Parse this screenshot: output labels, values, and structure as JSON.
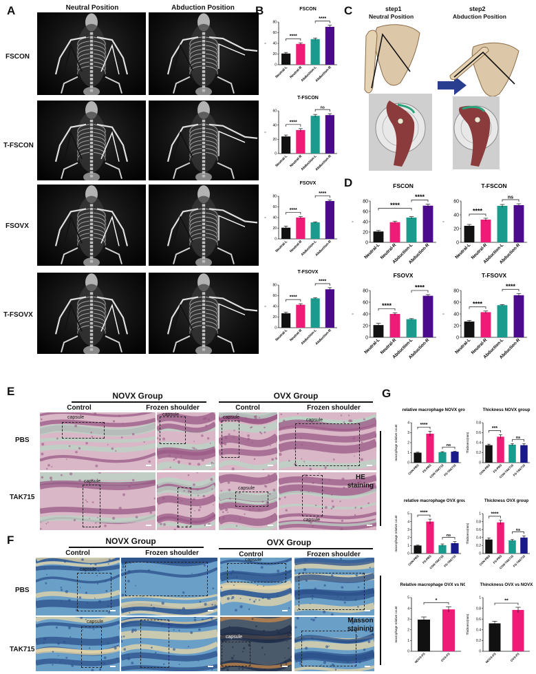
{
  "panels": {
    "A": "A",
    "B": "B",
    "C": "C",
    "D": "D",
    "E": "E",
    "F": "F",
    "G": "G"
  },
  "A": {
    "columns": [
      "Neutral Position",
      "Abduction Position"
    ],
    "rows": [
      "FSCON",
      "T-FSCON",
      "FSOVX",
      "T-FSOVX"
    ]
  },
  "C": {
    "step1": "step1",
    "step1_sub": "Neutral Position",
    "step2": "step2",
    "step2_sub": "Abduction Position"
  },
  "E": {
    "groups": [
      "NOVX Group",
      "OVX Group"
    ],
    "subs": [
      "Control",
      "Frozen shoulder",
      "Control",
      "Frozen shoulder"
    ],
    "rows": [
      "PBS",
      "TAK715"
    ],
    "capsule": "capsule",
    "stain_l1": "HE",
    "stain_l2": "staining"
  },
  "F": {
    "groups": [
      "NOVX Group",
      "OVX Group"
    ],
    "subs": [
      "Control",
      "Frozen shoulder",
      "Control",
      "Frozen shoulder"
    ],
    "rows": [
      "PBS",
      "TAK715"
    ],
    "capsule": "capsule",
    "stain_l1": "Masson",
    "stain_l2": "staining"
  },
  "colors": [
    "#111111",
    "#ee1c77",
    "#1a9b8e",
    "#4b0b8c",
    "#1a1a8c"
  ],
  "chart_data": [
    {
      "id": "B1",
      "type": "bar",
      "title": "FSCON",
      "categories": [
        "Neutral-L",
        "Neutral-R",
        "Abduction-L",
        "Abduction-R"
      ],
      "values": [
        21,
        39,
        48,
        71
      ],
      "errors": [
        2,
        2,
        2,
        3
      ],
      "ylim": [
        0,
        80
      ],
      "yticks": [
        0,
        20,
        40,
        60,
        80
      ],
      "ylabel": "°",
      "sig": [
        {
          "a": 0,
          "b": 1,
          "t": "****"
        },
        {
          "a": 2,
          "b": 3,
          "t": "****"
        }
      ]
    },
    {
      "id": "B2",
      "type": "bar",
      "title": "T-FSCON",
      "categories": [
        "Neutral-L",
        "Neutral-R",
        "Abduction-L",
        "Abduction-R"
      ],
      "values": [
        24,
        33,
        53,
        54
      ],
      "errors": [
        2,
        2,
        2,
        2
      ],
      "ylim": [
        0,
        60
      ],
      "yticks": [
        0,
        20,
        40,
        60
      ],
      "ylabel": "°",
      "sig": [
        {
          "a": 0,
          "b": 1,
          "t": "****"
        },
        {
          "a": 2,
          "b": 3,
          "t": "ns"
        }
      ]
    },
    {
      "id": "B3",
      "type": "bar",
      "title": "FSOVX",
      "categories": [
        "Neutral-L",
        "Neutral-R",
        "Abduction-L",
        "Abduction-R"
      ],
      "values": [
        21,
        40,
        31,
        71
      ],
      "errors": [
        3,
        2,
        1,
        2
      ],
      "ylim": [
        0,
        80
      ],
      "yticks": [
        0,
        20,
        40,
        60,
        80
      ],
      "ylabel": "°",
      "sig": [
        {
          "a": 0,
          "b": 1,
          "t": "****"
        },
        {
          "a": 2,
          "b": 3,
          "t": "****"
        }
      ]
    },
    {
      "id": "B4",
      "type": "bar",
      "title": "T-FSOVX",
      "categories": [
        "Neutral-L",
        "Neutral-R",
        "Abduction-L",
        "Abduction-R"
      ],
      "values": [
        27,
        43,
        55,
        72
      ],
      "errors": [
        2,
        2,
        1,
        3
      ],
      "ylim": [
        0,
        80
      ],
      "yticks": [
        0,
        20,
        40,
        60,
        80
      ],
      "ylabel": "°",
      "sig": [
        {
          "a": 0,
          "b": 1,
          "t": "****"
        },
        {
          "a": 2,
          "b": 3,
          "t": "****"
        }
      ]
    },
    {
      "id": "D1",
      "type": "bar",
      "title": "FSCON",
      "categories": [
        "Neutral-L",
        "Neutral-R",
        "Abduction-L",
        "Abduction-R"
      ],
      "values": [
        21,
        39,
        48,
        71
      ],
      "errors": [
        2,
        2,
        2,
        3
      ],
      "ylim": [
        0,
        80
      ],
      "yticks": [
        0,
        20,
        40,
        60,
        80
      ],
      "ylabel": "°",
      "sig": [
        {
          "a": 0,
          "b": 2,
          "t": "****"
        },
        {
          "a": 2,
          "b": 3,
          "t": "****"
        }
      ]
    },
    {
      "id": "D2",
      "type": "bar",
      "title": "T-FSCON",
      "categories": [
        "Neutral-L",
        "Neutral-R",
        "Abduction-L",
        "Abduction-R"
      ],
      "values": [
        24,
        33,
        53,
        54
      ],
      "errors": [
        2,
        2,
        2,
        2
      ],
      "ylim": [
        0,
        60
      ],
      "yticks": [
        0,
        20,
        40,
        60
      ],
      "ylabel": "°",
      "sig": [
        {
          "a": 0,
          "b": 1,
          "t": "****"
        },
        {
          "a": 2,
          "b": 3,
          "t": "ns"
        }
      ]
    },
    {
      "id": "D3",
      "type": "bar",
      "title": "FSOVX",
      "categories": [
        "Neutral-L",
        "Neutral-R",
        "Abduction-L",
        "Abduction-R"
      ],
      "values": [
        21,
        40,
        31,
        71
      ],
      "errors": [
        3,
        2,
        1,
        2
      ],
      "ylim": [
        0,
        80
      ],
      "yticks": [
        0,
        20,
        40,
        60,
        80
      ],
      "ylabel": "°",
      "sig": [
        {
          "a": 0,
          "b": 1,
          "t": "****"
        },
        {
          "a": 2,
          "b": 3,
          "t": "****"
        }
      ]
    },
    {
      "id": "D4",
      "type": "bar",
      "title": "T-FSOVX",
      "categories": [
        "Neutral-L",
        "Neutral-R",
        "Abduction-L",
        "Abduction-R"
      ],
      "values": [
        27,
        43,
        55,
        72
      ],
      "errors": [
        2,
        2,
        1,
        3
      ],
      "ylim": [
        0,
        80
      ],
      "yticks": [
        0,
        20,
        40,
        60,
        80
      ],
      "ylabel": "°",
      "sig": [
        {
          "a": 0,
          "b": 1,
          "t": "****"
        },
        {
          "a": 2,
          "b": 3,
          "t": "****"
        }
      ]
    },
    {
      "id": "G1",
      "type": "bar",
      "title": "relative macrophage NOVX group",
      "categories": [
        "CON-PBS",
        "FS-PBS",
        "CON-TAK715",
        "FS-TAK715"
      ],
      "values": [
        1.0,
        2.9,
        1.05,
        1.1
      ],
      "errors": [
        0.05,
        0.25,
        0.05,
        0.05
      ],
      "ylim": [
        0,
        4
      ],
      "yticks": [
        0,
        1,
        2,
        3,
        4
      ],
      "ylabel": "macrophage relative count",
      "colors": [
        0,
        1,
        2,
        4
      ],
      "sig": [
        {
          "a": 0,
          "b": 1,
          "t": "****"
        },
        {
          "a": 2,
          "b": 3,
          "t": "ns"
        }
      ]
    },
    {
      "id": "G2",
      "type": "bar",
      "title": "Thickness NOVX group",
      "categories": [
        "CON-PBS",
        "FS-PBS",
        "CON-TAK715",
        "FS-TAK715"
      ],
      "values": [
        0.35,
        0.52,
        0.36,
        0.35
      ],
      "errors": [
        0.02,
        0.04,
        0.02,
        0.03
      ],
      "ylim": [
        0,
        0.8
      ],
      "yticks": [
        0,
        0.2,
        0.4,
        0.6,
        0.8
      ],
      "ylabel": "Thickness(mm)",
      "colors": [
        0,
        1,
        2,
        4
      ],
      "sig": [
        {
          "a": 0,
          "b": 1,
          "t": "***"
        },
        {
          "a": 2,
          "b": 3,
          "t": "ns"
        }
      ]
    },
    {
      "id": "G3",
      "type": "bar",
      "title": "relative macrophage OVX group",
      "categories": [
        "CON-PBS",
        "FS-PBS",
        "CON-TAK715",
        "FS-TAK715"
      ],
      "values": [
        1.0,
        4.0,
        1.05,
        1.3
      ],
      "errors": [
        0.05,
        0.3,
        0.15,
        0.2
      ],
      "ylim": [
        0,
        5
      ],
      "yticks": [
        0,
        1,
        2,
        3,
        4,
        5
      ],
      "ylabel": "macrophage relative count",
      "colors": [
        0,
        1,
        2,
        4
      ],
      "sig": [
        {
          "a": 0,
          "b": 1,
          "t": "****"
        },
        {
          "a": 2,
          "b": 3,
          "t": "ns"
        }
      ]
    },
    {
      "id": "G4",
      "type": "bar",
      "title": "Thickness OVX group",
      "categories": [
        "CON-PBS",
        "FS-PBS",
        "CON-TAK715",
        "FS-TAK715"
      ],
      "values": [
        0.35,
        0.78,
        0.33,
        0.4
      ],
      "errors": [
        0.04,
        0.05,
        0.02,
        0.04
      ],
      "ylim": [
        0,
        1.0
      ],
      "yticks": [
        0,
        0.2,
        0.4,
        0.6,
        0.8,
        1.0
      ],
      "ylabel": "Thickness(mm)",
      "colors": [
        0,
        1,
        2,
        4
      ],
      "sig": [
        {
          "a": 0,
          "b": 1,
          "t": "****"
        },
        {
          "a": 2,
          "b": 3,
          "t": "ns"
        }
      ]
    },
    {
      "id": "G5",
      "type": "bar",
      "title": "Relative macrophage OVX vs NOVX",
      "categories": [
        "NOVX-FS",
        "OVX-FS"
      ],
      "values": [
        2.95,
        3.9
      ],
      "errors": [
        0.25,
        0.25
      ],
      "ylim": [
        0,
        5
      ],
      "yticks": [
        0,
        1,
        2,
        3,
        4,
        5
      ],
      "ylabel": "macrophage relative count",
      "colors": [
        0,
        1
      ],
      "sig": [
        {
          "a": 0,
          "b": 1,
          "t": "*"
        }
      ]
    },
    {
      "id": "G6",
      "type": "bar",
      "title": "Thinckness OVX vs NOVX",
      "categories": [
        "NOVX-FS",
        "OVX-FS"
      ],
      "values": [
        0.52,
        0.77
      ],
      "errors": [
        0.04,
        0.05
      ],
      "ylim": [
        0,
        1.0
      ],
      "yticks": [
        0,
        0.2,
        0.4,
        0.6,
        0.8,
        1.0
      ],
      "ylabel": "Thickness(mm)",
      "colors": [
        0,
        1
      ],
      "sig": [
        {
          "a": 0,
          "b": 1,
          "t": "**"
        }
      ]
    }
  ]
}
